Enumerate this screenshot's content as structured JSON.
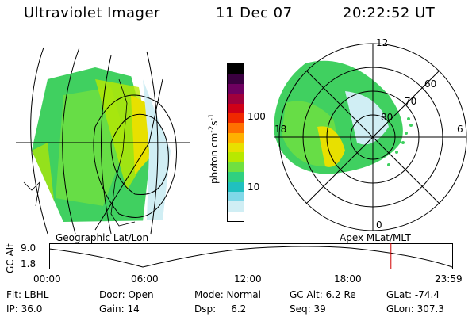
{
  "header": {
    "instrument": "Ultraviolet Imager",
    "date": "11 Dec 07",
    "time": "20:22:52 UT"
  },
  "colorbar": {
    "unit": "photon cm",
    "exp1": "-2",
    "mid": "s",
    "exp2": "-1",
    "ticks": [
      "100",
      "10"
    ],
    "colors": [
      "#000000",
      "#3a0040",
      "#6e0060",
      "#a0003c",
      "#d00018",
      "#f02800",
      "#ff7000",
      "#ffb000",
      "#e8e000",
      "#b8e800",
      "#70e040",
      "#30d080",
      "#20c0c0",
      "#80d8e8",
      "#d0eef4",
      "#ffffff"
    ]
  },
  "geo_panel": {
    "label": "Geographic Lat/Lon"
  },
  "apex_panel": {
    "label": "Apex MLat/MLT",
    "mlt": [
      "12",
      "18",
      "6",
      "0"
    ],
    "mlat": [
      "60",
      "70",
      "80"
    ]
  },
  "timeline": {
    "ylabel": "GC Alt",
    "yticks": [
      "9.0",
      "1.8"
    ],
    "xticks": [
      "00:00",
      "06:00",
      "12:00",
      "18:00",
      "23:59"
    ],
    "marker_fraction": 0.848
  },
  "info": {
    "row1": [
      "Flt: LBHL",
      "Door: Open",
      "Mode: Normal",
      "GC Alt: 6.2 Re",
      "GLat: -74.4"
    ],
    "row2": [
      "IP: 36.0",
      "Gain: 14",
      "Dsp:     6.2",
      "Seq: 39",
      "GLon: 307.3"
    ]
  }
}
